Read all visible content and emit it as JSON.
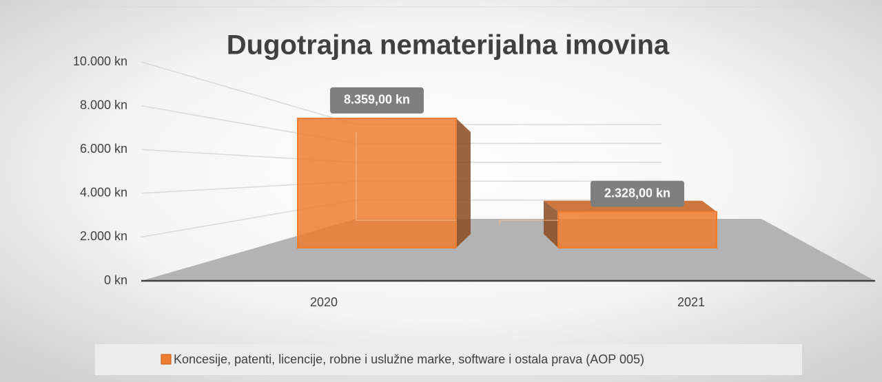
{
  "chart_data": {
    "type": "bar",
    "title": "Dugotrajna nematerijalna imovina",
    "categories": [
      "2020",
      "2021"
    ],
    "series": [
      {
        "name": "Koncesije, patenti, licencije, robne i uslužne marke, software i ostala prava (AOP 005)",
        "color": "#ed7d31",
        "values": [
          8359,
          2328
        ],
        "value_labels": [
          "8.359,00 kn",
          "2.328,00 kn"
        ]
      }
    ],
    "ylim": [
      0,
      10000
    ],
    "yticks": [
      {
        "value": 0,
        "label": "0 kn"
      },
      {
        "value": 2000,
        "label": "2.000 kn"
      },
      {
        "value": 4000,
        "label": "4.000 kn"
      },
      {
        "value": 6000,
        "label": "6.000 kn"
      },
      {
        "value": 8000,
        "label": "8.000 kn"
      },
      {
        "value": 10000,
        "label": "10.000 kn"
      }
    ],
    "grid": true,
    "legend": "bottom"
  }
}
